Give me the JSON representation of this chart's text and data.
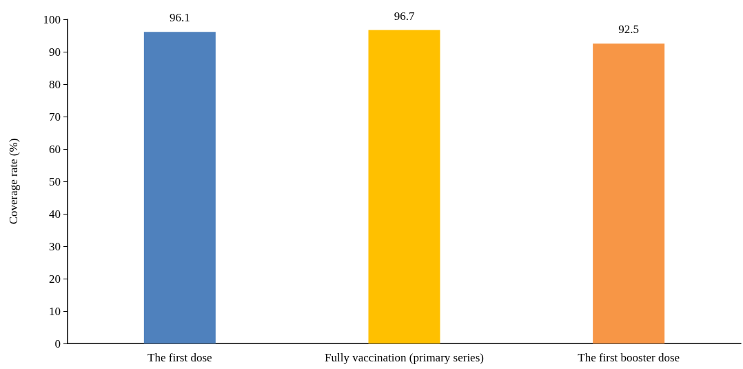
{
  "chart_data": {
    "type": "bar",
    "ylabel": "Coverage rate (%)",
    "categories": [
      "The first dose",
      "Fully vaccination (primary series)",
      "The first booster dose"
    ],
    "values": [
      96.1,
      96.7,
      92.5
    ],
    "colors": [
      "#4f81bd",
      "#ffc000",
      "#f79646"
    ],
    "ylim": [
      0,
      100
    ],
    "yticks": [
      0,
      10,
      20,
      30,
      40,
      50,
      60,
      70,
      80,
      90,
      100
    ],
    "grid": false,
    "data_labels": true
  }
}
